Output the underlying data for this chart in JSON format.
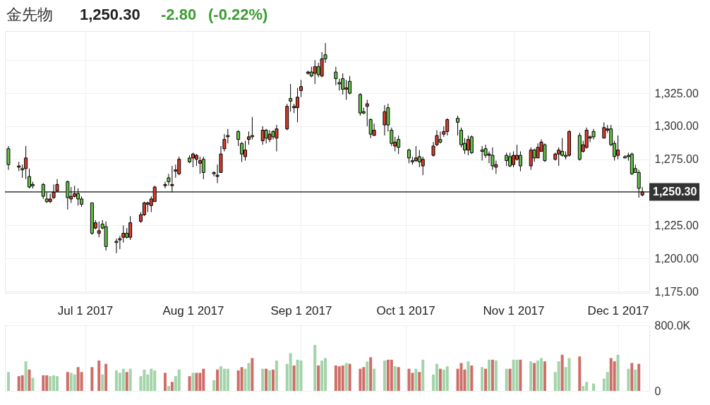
{
  "chart_data": [
    {
      "type": "candlestick",
      "title": "金先物",
      "annotations": [
        "1,250.30",
        "-2.80",
        "(-0.22%)"
      ],
      "x": [
        "2017-06-09",
        "2017-06-12",
        "2017-06-13",
        "2017-06-14",
        "2017-06-15",
        "2017-06-16",
        "2017-06-19",
        "2017-06-20",
        "2017-06-21",
        "2017-06-22",
        "2017-06-23",
        "2017-06-26",
        "2017-06-27",
        "2017-06-28",
        "2017-06-29",
        "2017-06-30",
        "2017-07-03",
        "2017-07-04",
        "2017-07-05",
        "2017-07-06",
        "2017-07-07",
        "2017-07-10",
        "2017-07-11",
        "2017-07-12",
        "2017-07-13",
        "2017-07-14",
        "2017-07-17",
        "2017-07-18",
        "2017-07-19",
        "2017-07-20",
        "2017-07-21",
        "2017-07-24",
        "2017-07-25",
        "2017-07-26",
        "2017-07-27",
        "2017-07-28",
        "2017-07-31",
        "2017-08-01",
        "2017-08-02",
        "2017-08-03",
        "2017-08-04",
        "2017-08-07",
        "2017-08-08",
        "2017-08-09",
        "2017-08-10",
        "2017-08-11",
        "2017-08-14",
        "2017-08-15",
        "2017-08-16",
        "2017-08-17",
        "2017-08-18",
        "2017-08-21",
        "2017-08-22",
        "2017-08-23",
        "2017-08-24",
        "2017-08-25",
        "2017-08-28",
        "2017-08-29",
        "2017-08-30",
        "2017-08-31",
        "2017-09-01",
        "2017-09-03",
        "2017-09-04",
        "2017-09-05",
        "2017-09-06",
        "2017-09-07",
        "2017-09-08",
        "2017-09-11",
        "2017-09-12",
        "2017-09-13",
        "2017-09-14",
        "2017-09-15",
        "2017-09-18",
        "2017-09-19",
        "2017-09-20",
        "2017-09-21",
        "2017-09-22",
        "2017-09-25",
        "2017-09-26",
        "2017-09-27",
        "2017-09-28",
        "2017-09-29",
        "2017-10-02",
        "2017-10-03",
        "2017-10-04",
        "2017-10-05",
        "2017-10-06",
        "2017-10-09",
        "2017-10-10",
        "2017-10-11",
        "2017-10-12",
        "2017-10-13",
        "2017-10-16",
        "2017-10-17",
        "2017-10-18",
        "2017-10-19",
        "2017-10-20",
        "2017-10-23",
        "2017-10-24",
        "2017-10-25",
        "2017-10-26",
        "2017-10-27",
        "2017-10-30",
        "2017-10-31",
        "2017-11-01",
        "2017-11-02",
        "2017-11-03",
        "2017-11-06",
        "2017-11-07",
        "2017-11-08",
        "2017-11-09",
        "2017-11-10",
        "2017-11-13",
        "2017-11-14",
        "2017-11-15",
        "2017-11-16",
        "2017-11-17",
        "2017-11-20",
        "2017-11-21",
        "2017-11-22",
        "2017-11-23",
        "2017-11-24",
        "2017-11-27",
        "2017-11-28",
        "2017-11-29",
        "2017-11-30",
        "2017-12-01",
        "2017-12-03",
        "2017-12-04",
        "2017-12-05",
        "2017-12-06",
        "2017-12-07",
        "2017-12-08"
      ],
      "ohlc": [
        [
          1283,
          1285,
          1267,
          1271
        ],
        [
          1269,
          1273,
          1266,
          1270
        ],
        [
          1268,
          1271,
          1261,
          1267
        ],
        [
          1268,
          1285,
          1260,
          1276
        ],
        [
          1262,
          1268,
          1253,
          1254
        ],
        [
          1256,
          1258,
          1253,
          1255
        ],
        [
          1256,
          1257,
          1245,
          1247
        ],
        [
          1245,
          1250,
          1242,
          1243
        ],
        [
          1243,
          1249,
          1242,
          1245
        ],
        [
          1246,
          1256,
          1245,
          1250
        ],
        [
          1251,
          1260,
          1250,
          1256
        ],
        [
          1258,
          1259,
          1237,
          1246
        ],
        [
          1245,
          1254,
          1242,
          1247
        ],
        [
          1247,
          1255,
          1246,
          1249
        ],
        [
          1249,
          1253,
          1240,
          1245
        ],
        [
          1245,
          1247,
          1239,
          1241
        ],
        [
          1242,
          1242,
          1218,
          1219
        ],
        [
          1223,
          1229,
          1222,
          1227
        ],
        [
          1219,
          1228,
          1216,
          1221
        ],
        [
          1226,
          1229,
          1222,
          1223
        ],
        [
          1224,
          1228,
          1206,
          1209
        ],
        [
          1213,
          1215,
          1204,
          1212
        ],
        [
          1214,
          1217,
          1207,
          1215
        ],
        [
          1216,
          1225,
          1212,
          1219
        ],
        [
          1219,
          1223,
          1215,
          1216
        ],
        [
          1216,
          1232,
          1214,
          1227
        ],
        [
          1228,
          1235,
          1227,
          1233
        ],
        [
          1233,
          1243,
          1232,
          1242
        ],
        [
          1241,
          1243,
          1235,
          1242
        ],
        [
          1240,
          1247,
          1235,
          1245
        ],
        [
          1243,
          1255,
          1243,
          1254
        ],
        [
          1255,
          1258,
          1253,
          1256
        ],
        [
          1261,
          1264,
          1255,
          1258
        ],
        [
          1255,
          1270,
          1250,
          1256
        ],
        [
          1266,
          1271,
          1261,
          1267
        ],
        [
          1264,
          1277,
          1263,
          1275
        ],
        [
          1276,
          1278,
          1272,
          1273
        ],
        [
          1276,
          1280,
          1269,
          1279
        ],
        [
          1275,
          1279,
          1270,
          1278
        ],
        [
          1272,
          1277,
          1264,
          1274
        ],
        [
          1275,
          1277,
          1260,
          1265
        ],
        [
          1265,
          1266,
          1262,
          1264
        ],
        [
          1262,
          1271,
          1257,
          1263
        ],
        [
          1265,
          1285,
          1265,
          1279
        ],
        [
          1283,
          1294,
          1281,
          1290
        ],
        [
          1292,
          1298,
          1287,
          1293
        ],
        [
          1296,
          1297,
          1285,
          1290
        ],
        [
          1287,
          1288,
          1273,
          1279
        ],
        [
          1277,
          1289,
          1274,
          1282
        ],
        [
          1290,
          1296,
          1286,
          1292
        ],
        [
          1293,
          1307,
          1290,
          1292
        ],
        [
          1289,
          1300,
          1286,
          1297
        ],
        [
          1297,
          1298,
          1287,
          1291
        ],
        [
          1290,
          1297,
          1288,
          1294
        ],
        [
          1296,
          1297,
          1290,
          1292
        ],
        [
          1291,
          1301,
          1281,
          1298
        ],
        [
          1298,
          1317,
          1297,
          1315
        ],
        [
          1321,
          1332,
          1311,
          1319
        ],
        [
          1314,
          1317,
          1310,
          1315
        ],
        [
          1314,
          1329,
          1303,
          1322
        ],
        [
          1327,
          1335,
          1322,
          1330
        ],
        [
          1340,
          1342,
          1339,
          1341
        ],
        [
          1341,
          1345,
          1337,
          1338
        ],
        [
          1340,
          1350,
          1332,
          1345
        ],
        [
          1345,
          1348,
          1337,
          1339
        ],
        [
          1338,
          1356,
          1337,
          1351
        ],
        [
          1354,
          1363,
          1348,
          1351
        ],
        [
          1341,
          1345,
          1331,
          1336
        ],
        [
          1333,
          1336,
          1327,
          1332
        ],
        [
          1336,
          1340,
          1324,
          1328
        ],
        [
          1328,
          1335,
          1320,
          1329
        ],
        [
          1334,
          1338,
          1324,
          1325
        ],
        [
          1324,
          1325,
          1308,
          1310
        ],
        [
          1311,
          1314,
          1309,
          1310
        ],
        [
          1315,
          1320,
          1300,
          1317
        ],
        [
          1305,
          1306,
          1291,
          1294
        ],
        [
          1293,
          1302,
          1293,
          1297
        ],
        [
          1301,
          1316,
          1293,
          1311
        ],
        [
          1314,
          1317,
          1296,
          1301
        ],
        [
          1297,
          1299,
          1285,
          1287
        ],
        [
          1285,
          1292,
          1281,
          1288
        ],
        [
          1290,
          1293,
          1279,
          1284
        ],
        [
          1282,
          1283,
          1272,
          1276
        ],
        [
          1274,
          1277,
          1271,
          1273
        ],
        [
          1274,
          1285,
          1273,
          1276
        ],
        [
          1277,
          1282,
          1269,
          1273
        ],
        [
          1270,
          1277,
          1263,
          1275
        ],
        [
          1278,
          1288,
          1277,
          1285
        ],
        [
          1286,
          1297,
          1285,
          1293
        ],
        [
          1290,
          1296,
          1287,
          1288
        ],
        [
          1294,
          1300,
          1292,
          1296
        ],
        [
          1296,
          1306,
          1293,
          1305
        ],
        [
          1306,
          1308,
          1293,
          1303
        ],
        [
          1297,
          1299,
          1284,
          1286
        ],
        [
          1287,
          1291,
          1279,
          1282
        ],
        [
          1282,
          1293,
          1278,
          1290
        ],
        [
          1292,
          1293,
          1279,
          1280
        ],
        [
          1282,
          1285,
          1274,
          1281
        ],
        [
          1283,
          1286,
          1276,
          1278
        ],
        [
          1278,
          1281,
          1272,
          1279
        ],
        [
          1278,
          1284,
          1267,
          1270
        ],
        [
          1269,
          1274,
          1264,
          1271
        ],
        [
          1278,
          1280,
          1270,
          1274
        ],
        [
          1277,
          1280,
          1269,
          1270
        ],
        [
          1271,
          1281,
          1269,
          1278
        ],
        [
          1275,
          1286,
          1274,
          1278
        ],
        [
          1278,
          1281,
          1266,
          1270
        ],
        [
          1270,
          1284,
          1267,
          1282
        ],
        [
          1282,
          1283,
          1273,
          1276
        ],
        [
          1276,
          1287,
          1276,
          1284
        ],
        [
          1281,
          1290,
          1281,
          1288
        ],
        [
          1286,
          1287,
          1273,
          1274
        ],
        [
          1275,
          1280,
          1274,
          1279
        ],
        [
          1279,
          1284,
          1270,
          1282
        ],
        [
          1281,
          1291,
          1277,
          1278
        ],
        [
          1278,
          1281,
          1275,
          1277
        ],
        [
          1278,
          1297,
          1277,
          1296
        ],
        [
          1293,
          1295,
          1274,
          1275
        ],
        [
          1281,
          1289,
          1280,
          1286
        ],
        [
          1284,
          1299,
          1283,
          1297
        ],
        [
          1291,
          1293,
          1288,
          1292
        ],
        [
          1296,
          1298,
          1290,
          1292
        ],
        [
          1291,
          1303,
          1291,
          1299
        ],
        [
          1297,
          1301,
          1295,
          1298
        ],
        [
          1298,
          1301,
          1285,
          1286
        ],
        [
          1287,
          1289,
          1274,
          1277
        ],
        [
          1278,
          1293,
          1275,
          1282
        ],
        [
          1277,
          1278,
          1276,
          1276
        ],
        [
          1278,
          1280,
          1274,
          1277
        ],
        [
          1279,
          1280,
          1263,
          1264
        ],
        [
          1268,
          1271,
          1265,
          1265
        ],
        [
          1265,
          1267,
          1246,
          1253
        ],
        [
          1248,
          1254,
          1247,
          1250.3
        ]
      ],
      "colors": [
        "#63c246",
        "#d73c2c",
        "#63c246",
        "#d73c2c",
        "#63c246",
        "#63c246",
        "#63c246",
        "#63c246",
        "#d73c2c",
        "#d73c2c",
        "#d73c2c",
        "#63c246",
        "#d73c2c",
        "#d73c2c",
        "#63c246",
        "#63c246",
        "#63c246",
        "#d73c2c",
        "#d73c2c",
        "#63c246",
        "#63c246",
        "#63c246",
        "#d73c2c",
        "#d73c2c",
        "#63c246",
        "#d73c2c",
        "#d73c2c",
        "#d73c2c",
        "#d73c2c",
        "#d73c2c",
        "#d73c2c",
        "#d73c2c",
        "#63c246",
        "#d73c2c",
        "#d73c2c",
        "#d73c2c",
        "#63c246",
        "#d73c2c",
        "#d73c2c",
        "#d73c2c",
        "#63c246",
        "#63c246",
        "#d73c2c",
        "#d73c2c",
        "#d73c2c",
        "#d73c2c",
        "#63c246",
        "#63c246",
        "#d73c2c",
        "#d73c2c",
        "#63c246",
        "#d73c2c",
        "#63c246",
        "#d73c2c",
        "#63c246",
        "#d73c2c",
        "#d73c2c",
        "#63c246",
        "#d73c2c",
        "#d73c2c",
        "#d73c2c",
        "#d73c2c",
        "#63c246",
        "#d73c2c",
        "#63c246",
        "#d73c2c",
        "#63c246",
        "#63c246",
        "#63c246",
        "#63c246",
        "#d73c2c",
        "#63c246",
        "#63c246",
        "#63c246",
        "#d73c2c",
        "#63c246",
        "#d73c2c",
        "#d73c2c",
        "#63c246",
        "#63c246",
        "#d73c2c",
        "#63c246",
        "#63c246",
        "#63c246",
        "#d73c2c",
        "#63c246",
        "#d73c2c",
        "#d73c2c",
        "#d73c2c",
        "#63c246",
        "#d73c2c",
        "#d73c2c",
        "#63c246",
        "#63c246",
        "#63c246",
        "#d73c2c",
        "#63c246",
        "#63c246",
        "#63c246",
        "#d73c2c",
        "#63c246",
        "#d73c2c",
        "#63c246",
        "#63c246",
        "#d73c2c",
        "#d73c2c",
        "#63c246",
        "#d73c2c",
        "#63c246",
        "#d73c2c",
        "#d73c2c",
        "#63c246",
        "#d73c2c",
        "#d73c2c",
        "#63c246",
        "#63c246",
        "#d73c2c",
        "#63c246",
        "#d73c2c",
        "#d73c2c",
        "#d73c2c",
        "#63c246",
        "#d73c2c",
        "#d73c2c",
        "#63c246",
        "#63c246",
        "#d73c2c",
        "#63c246",
        "#63c246",
        "#63c246",
        "#63c246",
        "#63c246",
        "#d73c2c"
      ],
      "xlim": [
        "2017-06-08",
        "2017-12-10"
      ],
      "xticks": [
        {
          "value": "2017-07-01",
          "label": "Jul 1 2017"
        },
        {
          "value": "2017-08-01",
          "label": "Aug 1 2017"
        },
        {
          "value": "2017-09-01",
          "label": "Sep 1 2017"
        },
        {
          "value": "2017-10-01",
          "label": "Oct 1 2017"
        },
        {
          "value": "2017-11-01",
          "label": "Nov 1 2017"
        },
        {
          "value": "2017-12-01",
          "label": "Dec 1 2017"
        }
      ],
      "ylim": [
        1174,
        1372
      ],
      "yticks": [
        {
          "value": 1175,
          "label": "1,175.00"
        },
        {
          "value": 1200,
          "label": "1,200.00"
        },
        {
          "value": 1225,
          "label": "1,225.00"
        },
        {
          "value": 1275,
          "label": "1,275.00"
        },
        {
          "value": 1300,
          "label": "1,300.00"
        },
        {
          "value": 1325,
          "label": "1,325.00"
        },
        {
          "value": 1350,
          "label": null
        }
      ],
      "ref_lines": [
        {
          "axis": "y",
          "value": 1250.3,
          "label": "1,250.30",
          "color": "#333333"
        }
      ],
      "grid": true
    },
    {
      "type": "bar",
      "x": [
        "2017-06-09",
        "2017-06-12",
        "2017-06-13",
        "2017-06-14",
        "2017-06-15",
        "2017-06-16",
        "2017-06-19",
        "2017-06-20",
        "2017-06-21",
        "2017-06-22",
        "2017-06-23",
        "2017-06-26",
        "2017-06-27",
        "2017-06-28",
        "2017-06-29",
        "2017-06-30",
        "2017-07-03",
        "2017-07-04",
        "2017-07-05",
        "2017-07-06",
        "2017-07-07",
        "2017-07-10",
        "2017-07-11",
        "2017-07-12",
        "2017-07-13",
        "2017-07-14",
        "2017-07-17",
        "2017-07-18",
        "2017-07-19",
        "2017-07-20",
        "2017-07-21",
        "2017-07-24",
        "2017-07-25",
        "2017-07-26",
        "2017-07-27",
        "2017-07-28",
        "2017-07-31",
        "2017-08-01",
        "2017-08-02",
        "2017-08-03",
        "2017-08-04",
        "2017-08-07",
        "2017-08-08",
        "2017-08-09",
        "2017-08-10",
        "2017-08-11",
        "2017-08-14",
        "2017-08-15",
        "2017-08-16",
        "2017-08-17",
        "2017-08-18",
        "2017-08-21",
        "2017-08-22",
        "2017-08-23",
        "2017-08-24",
        "2017-08-25",
        "2017-08-28",
        "2017-08-29",
        "2017-08-30",
        "2017-08-31",
        "2017-09-01",
        "2017-09-03",
        "2017-09-04",
        "2017-09-05",
        "2017-09-06",
        "2017-09-07",
        "2017-09-08",
        "2017-09-11",
        "2017-09-12",
        "2017-09-13",
        "2017-09-14",
        "2017-09-15",
        "2017-09-18",
        "2017-09-19",
        "2017-09-20",
        "2017-09-21",
        "2017-09-22",
        "2017-09-25",
        "2017-09-26",
        "2017-09-27",
        "2017-09-28",
        "2017-09-29",
        "2017-10-02",
        "2017-10-03",
        "2017-10-04",
        "2017-10-05",
        "2017-10-06",
        "2017-10-09",
        "2017-10-10",
        "2017-10-11",
        "2017-10-12",
        "2017-10-13",
        "2017-10-16",
        "2017-10-17",
        "2017-10-18",
        "2017-10-19",
        "2017-10-20",
        "2017-10-23",
        "2017-10-24",
        "2017-10-25",
        "2017-10-26",
        "2017-10-27",
        "2017-10-30",
        "2017-10-31",
        "2017-11-01",
        "2017-11-02",
        "2017-11-03",
        "2017-11-06",
        "2017-11-07",
        "2017-11-08",
        "2017-11-09",
        "2017-11-10",
        "2017-11-13",
        "2017-11-14",
        "2017-11-15",
        "2017-11-16",
        "2017-11-17",
        "2017-11-20",
        "2017-11-21",
        "2017-11-22",
        "2017-11-23",
        "2017-11-24",
        "2017-11-27",
        "2017-11-28",
        "2017-11-29",
        "2017-11-30",
        "2017-12-01",
        "2017-12-03",
        "2017-12-04",
        "2017-12-05",
        "2017-12-06",
        "2017-12-07"
      ],
      "values": [
        230000,
        180000,
        190000,
        360000,
        260000,
        160000,
        190000,
        190000,
        180000,
        190000,
        180000,
        230000,
        220000,
        200000,
        290000,
        230000,
        290000,
        null,
        370000,
        200000,
        330000,
        250000,
        220000,
        270000,
        230000,
        270000,
        180000,
        260000,
        200000,
        270000,
        250000,
        220000,
        60000,
        110000,
        180000,
        260000,
        180000,
        220000,
        220000,
        220000,
        270000,
        130000,
        260000,
        300000,
        270000,
        270000,
        250000,
        290000,
        270000,
        340000,
        400000,
        270000,
        270000,
        250000,
        260000,
        370000,
        330000,
        460000,
        310000,
        380000,
        370000,
        null,
        null,
        560000,
        310000,
        370000,
        400000,
        310000,
        300000,
        310000,
        340000,
        330000,
        270000,
        290000,
        360000,
        410000,
        270000,
        370000,
        380000,
        380000,
        300000,
        290000,
        270000,
        220000,
        270000,
        230000,
        380000,
        200000,
        330000,
        270000,
        260000,
        300000,
        270000,
        340000,
        260000,
        360000,
        310000,
        290000,
        270000,
        380000,
        380000,
        370000,
        270000,
        270000,
        380000,
        380000,
        380000,
        360000,
        340000,
        370000,
        400000,
        360000,
        230000,
        360000,
        440000,
        290000,
        400000,
        420000,
        60000,
        110000,
        null,
        90000,
        150000,
        230000,
        400000,
        360000,
        440000,
        null,
        270000,
        340000,
        260000,
        330000
      ],
      "colors": [
        "#a3d4a9",
        "#cf6e69",
        "#cf6e69",
        "#a3d4a9",
        "#cf6e69",
        "#a3d4a9",
        "#cf6e69",
        "#cf6e69",
        "#a3d4a9",
        "#a3d4a9",
        "#a3d4a9",
        "#cf6e69",
        "#a3d4a9",
        "#a3d4a9",
        "#cf6e69",
        "#cf6e69",
        "#cf6e69",
        null,
        "#cf6e69",
        "#a3d4a9",
        "#cf6e69",
        "#a3d4a9",
        "#a3d4a9",
        "#a3d4a9",
        "#cf6e69",
        "#a3d4a9",
        "#a3d4a9",
        "#a3d4a9",
        "#a3d4a9",
        "#a3d4a9",
        "#a3d4a9",
        "#cf6e69",
        "#a3d4a9",
        "#cf6e69",
        "#a3d4a9",
        "#a3d4a9",
        "#cf6e69",
        "#a3d4a9",
        "#cf6e69",
        "#cf6e69",
        "#cf6e69",
        "#a3d4a9",
        "#cf6e69",
        "#a3d4a9",
        "#a3d4a9",
        "#a3d4a9",
        "#cf6e69",
        "#cf6e69",
        "#a3d4a9",
        "#a3d4a9",
        "#cf6e69",
        "#a3d4a9",
        "#cf6e69",
        "#a3d4a9",
        "#cf6e69",
        "#a3d4a9",
        "#a3d4a9",
        "#a3d4a9",
        "#cf6e69",
        "#a3d4a9",
        "#a3d4a9",
        null,
        null,
        "#a3d4a9",
        "#cf6e69",
        "#a3d4a9",
        "#a3d4a9",
        "#cf6e69",
        "#cf6e69",
        "#cf6e69",
        "#a3d4a9",
        "#cf6e69",
        "#cf6e69",
        "#cf6e69",
        "#a3d4a9",
        "#cf6e69",
        "#a3d4a9",
        "#a3d4a9",
        "#cf6e69",
        "#cf6e69",
        "#a3d4a9",
        "#cf6e69",
        "#cf6e69",
        "#cf6e69",
        "#a3d4a9",
        "#cf6e69",
        "#a3d4a9",
        "#a3d4a9",
        "#a3d4a9",
        "#cf6e69",
        "#a3d4a9",
        "#a3d4a9",
        "#cf6e69",
        "#cf6e69",
        "#cf6e69",
        "#a3d4a9",
        "#cf6e69",
        "#a3d4a9",
        "#cf6e69",
        "#a3d4a9",
        "#cf6e69",
        "#a3d4a9",
        "#a3d4a9",
        "#cf6e69",
        "#a3d4a9",
        "#a3d4a9",
        "#cf6e69",
        "#a3d4a9",
        "#cf6e69",
        "#a3d4a9",
        "#a3d4a9",
        "#cf6e69",
        "#a3d4a9",
        "#a3d4a9",
        "#cf6e69",
        "#a3d4a9",
        "#a3d4a9",
        "#cf6e69",
        "#a3d4a9",
        "#a3d4a9",
        null,
        "#a3d4a9",
        "#a3d4a9",
        "#a3d4a9",
        "#cf6e69",
        "#cf6e69",
        "#a3d4a9",
        null,
        "#a3d4a9",
        "#cf6e69",
        "#a3d4a9",
        "#cf6e69"
      ],
      "xlim": [
        "2017-06-08",
        "2017-12-10"
      ],
      "xticks": [
        {
          "value": "2017-07-01",
          "label": null
        },
        {
          "value": "2017-08-01",
          "label": null
        },
        {
          "value": "2017-09-01",
          "label": null
        },
        {
          "value": "2017-10-01",
          "label": null
        },
        {
          "value": "2017-11-01",
          "label": null
        },
        {
          "value": "2017-12-01",
          "label": null
        }
      ],
      "ylim": [
        0,
        800000
      ],
      "yticks": [
        0,
        {
          "value": 800000,
          "label": "800.0K"
        }
      ],
      "tick_labels": "y",
      "grid": true
    }
  ]
}
